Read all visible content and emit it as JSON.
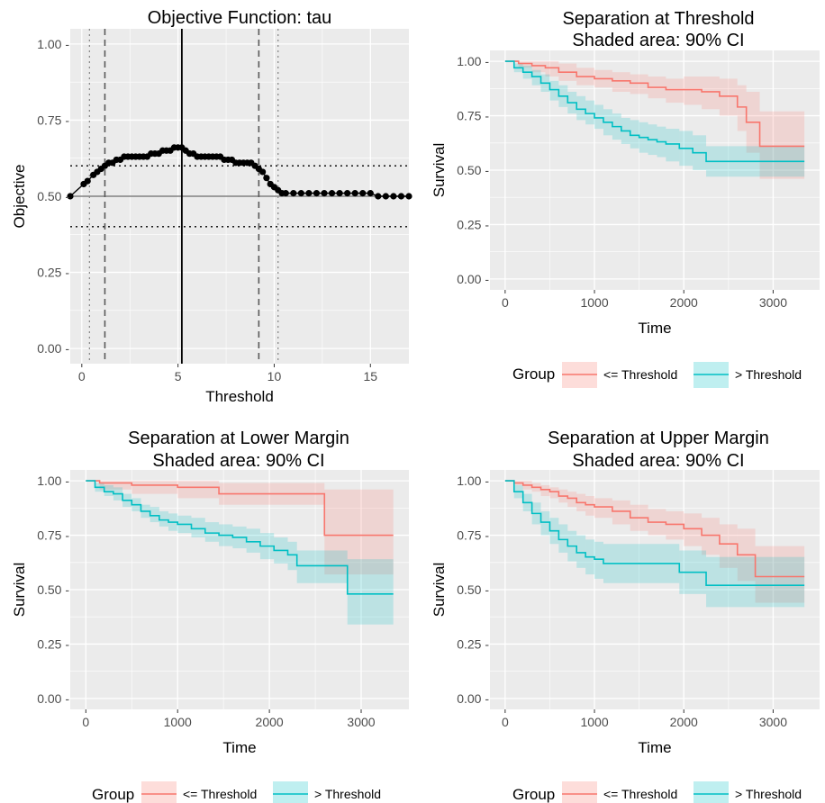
{
  "colors": {
    "panel_bg": "#ebebeb",
    "grid_major": "#ffffff",
    "low_group": "#f8766d",
    "high_group": "#00bfc4",
    "points": "#000000"
  },
  "chart_data": [
    {
      "id": "objective",
      "type": "scatter",
      "title": "Objective Function: tau",
      "xlabel": "Threshold",
      "ylabel": "Objective",
      "xlim": [
        -0.6,
        17
      ],
      "ylim": [
        -0.05,
        1.05
      ],
      "xticks": [
        0,
        5,
        10,
        15
      ],
      "xtick_labels": [
        "0",
        "5",
        "10",
        "15"
      ],
      "yticks": [
        0,
        0.25,
        0.5,
        0.75,
        1
      ],
      "ytick_labels": [
        "0.00 -",
        "0.25 -",
        "0.50 -",
        "0.75 -",
        "1.00 -"
      ],
      "grid": true,
      "series": [
        {
          "values_xy": [
            [
              -0.6,
              0.5
            ],
            [
              0.1,
              0.54
            ],
            [
              0.3,
              0.55
            ],
            [
              0.6,
              0.57
            ],
            [
              0.8,
              0.58
            ],
            [
              1.0,
              0.59
            ],
            [
              1.2,
              0.6
            ],
            [
              1.4,
              0.61
            ],
            [
              1.6,
              0.61
            ],
            [
              1.8,
              0.62
            ],
            [
              2.0,
              0.62
            ],
            [
              2.2,
              0.63
            ],
            [
              2.4,
              0.63
            ],
            [
              2.6,
              0.63
            ],
            [
              2.8,
              0.63
            ],
            [
              3.0,
              0.63
            ],
            [
              3.2,
              0.63
            ],
            [
              3.4,
              0.63
            ],
            [
              3.6,
              0.64
            ],
            [
              3.8,
              0.64
            ],
            [
              4.0,
              0.64
            ],
            [
              4.2,
              0.65
            ],
            [
              4.4,
              0.65
            ],
            [
              4.6,
              0.65
            ],
            [
              4.8,
              0.66
            ],
            [
              5.0,
              0.66
            ],
            [
              5.2,
              0.66
            ],
            [
              5.4,
              0.65
            ],
            [
              5.6,
              0.64
            ],
            [
              5.8,
              0.64
            ],
            [
              6.0,
              0.63
            ],
            [
              6.2,
              0.63
            ],
            [
              6.4,
              0.63
            ],
            [
              6.6,
              0.63
            ],
            [
              6.8,
              0.63
            ],
            [
              7.0,
              0.63
            ],
            [
              7.2,
              0.63
            ],
            [
              7.4,
              0.62
            ],
            [
              7.6,
              0.62
            ],
            [
              7.8,
              0.62
            ],
            [
              8.0,
              0.61
            ],
            [
              8.2,
              0.61
            ],
            [
              8.4,
              0.61
            ],
            [
              8.6,
              0.61
            ],
            [
              8.8,
              0.61
            ],
            [
              9.0,
              0.6
            ],
            [
              9.2,
              0.59
            ],
            [
              9.4,
              0.58
            ],
            [
              9.6,
              0.56
            ],
            [
              9.8,
              0.54
            ],
            [
              10.0,
              0.53
            ],
            [
              10.2,
              0.52
            ],
            [
              10.4,
              0.51
            ],
            [
              10.6,
              0.51
            ],
            [
              11.0,
              0.51
            ],
            [
              11.4,
              0.51
            ],
            [
              11.8,
              0.51
            ],
            [
              12.2,
              0.51
            ],
            [
              12.6,
              0.51
            ],
            [
              13.0,
              0.51
            ],
            [
              13.4,
              0.51
            ],
            [
              13.8,
              0.51
            ],
            [
              14.2,
              0.51
            ],
            [
              14.6,
              0.51
            ],
            [
              15.0,
              0.51
            ],
            [
              15.4,
              0.5
            ],
            [
              15.8,
              0.5
            ],
            [
              16.2,
              0.5
            ],
            [
              16.6,
              0.5
            ],
            [
              17.0,
              0.5
            ]
          ]
        }
      ],
      "reference_lines": {
        "h_solid": 0.5,
        "h_dotted": [
          0.4,
          0.6
        ],
        "v_solid": 5.2,
        "v_dashed": [
          1.2,
          9.2
        ],
        "v_dotted": [
          0.4,
          10.2
        ]
      }
    },
    {
      "id": "threshold",
      "type": "line",
      "title": "Separation at Threshold",
      "subtitle": "Shaded area: 90% CI",
      "xlabel": "Time",
      "ylabel": "Survival",
      "xlim": [
        -170,
        3520
      ],
      "ylim": [
        -0.05,
        1.05
      ],
      "xticks": [
        0,
        1000,
        2000,
        3000
      ],
      "xtick_labels": [
        "0",
        "1000",
        "2000",
        "3000"
      ],
      "yticks": [
        0,
        0.25,
        0.5,
        0.75,
        1
      ],
      "ytick_labels": [
        "0.00 -",
        "0.25 -",
        "0.50 -",
        "0.75 -",
        "1.00 -"
      ],
      "grid": true,
      "legend_position": "bottom",
      "series": [
        {
          "name": "<= Threshold",
          "x": [
            0,
            150,
            300,
            450,
            600,
            800,
            1000,
            1200,
            1400,
            1600,
            1800,
            2000,
            2200,
            2400,
            2600,
            2700,
            2850,
            3350
          ],
          "y": [
            1.0,
            0.99,
            0.98,
            0.97,
            0.95,
            0.93,
            0.92,
            0.91,
            0.9,
            0.88,
            0.87,
            0.87,
            0.86,
            0.84,
            0.79,
            0.72,
            0.61,
            0.61
          ],
          "lower": [
            1.0,
            0.97,
            0.95,
            0.93,
            0.91,
            0.89,
            0.88,
            0.86,
            0.85,
            0.83,
            0.81,
            0.8,
            0.78,
            0.75,
            0.68,
            0.58,
            0.46,
            0.46
          ],
          "upper": [
            1.0,
            1.0,
            1.0,
            1.0,
            0.99,
            0.97,
            0.96,
            0.95,
            0.94,
            0.93,
            0.92,
            0.93,
            0.93,
            0.92,
            0.89,
            0.86,
            0.77,
            0.77
          ]
        },
        {
          "name": "> Threshold",
          "x": [
            0,
            100,
            200,
            300,
            400,
            500,
            600,
            700,
            800,
            900,
            1000,
            1100,
            1200,
            1300,
            1400,
            1500,
            1600,
            1700,
            1800,
            1950,
            2100,
            2250,
            3350
          ],
          "y": [
            1.0,
            0.97,
            0.95,
            0.93,
            0.9,
            0.87,
            0.84,
            0.81,
            0.78,
            0.76,
            0.74,
            0.72,
            0.7,
            0.68,
            0.66,
            0.65,
            0.64,
            0.63,
            0.62,
            0.6,
            0.58,
            0.54,
            0.54
          ],
          "lower": [
            1.0,
            0.95,
            0.92,
            0.89,
            0.86,
            0.82,
            0.79,
            0.76,
            0.73,
            0.71,
            0.69,
            0.66,
            0.64,
            0.62,
            0.6,
            0.58,
            0.57,
            0.56,
            0.54,
            0.52,
            0.5,
            0.47,
            0.47
          ],
          "upper": [
            1.0,
            0.99,
            0.98,
            0.96,
            0.94,
            0.91,
            0.89,
            0.86,
            0.84,
            0.82,
            0.8,
            0.78,
            0.76,
            0.74,
            0.73,
            0.72,
            0.71,
            0.7,
            0.69,
            0.68,
            0.66,
            0.61,
            0.61
          ]
        }
      ]
    },
    {
      "id": "lower",
      "type": "line",
      "title": "Separation at Lower Margin",
      "subtitle": "Shaded area: 90% CI",
      "xlabel": "Time",
      "ylabel": "Survival",
      "xlim": [
        -170,
        3520
      ],
      "ylim": [
        -0.05,
        1.05
      ],
      "xticks": [
        0,
        1000,
        2000,
        3000
      ],
      "xtick_labels": [
        "0",
        "1000",
        "2000",
        "3000"
      ],
      "yticks": [
        0,
        0.25,
        0.5,
        0.75,
        1
      ],
      "ytick_labels": [
        "0.00 -",
        "0.25 -",
        "0.50 -",
        "0.75 -",
        "1.00 -"
      ],
      "grid": true,
      "legend_position": "bottom",
      "series": [
        {
          "name": "<= Threshold",
          "x": [
            0,
            150,
            500,
            1000,
            1450,
            2600,
            3350
          ],
          "y": [
            1.0,
            0.99,
            0.98,
            0.97,
            0.94,
            0.75,
            0.75
          ],
          "lower": [
            1.0,
            0.96,
            0.94,
            0.92,
            0.89,
            0.57,
            0.57
          ],
          "upper": [
            1.0,
            1.0,
            1.0,
            1.0,
            0.99,
            0.96,
            0.96
          ]
        },
        {
          "name": "> Threshold",
          "x": [
            0,
            100,
            200,
            300,
            400,
            500,
            600,
            700,
            800,
            900,
            1000,
            1150,
            1300,
            1450,
            1600,
            1750,
            1900,
            2050,
            2200,
            2300,
            2800,
            2850,
            3350
          ],
          "y": [
            1.0,
            0.97,
            0.95,
            0.94,
            0.91,
            0.89,
            0.86,
            0.84,
            0.82,
            0.81,
            0.8,
            0.78,
            0.76,
            0.75,
            0.74,
            0.72,
            0.7,
            0.68,
            0.66,
            0.61,
            0.61,
            0.48,
            0.48
          ],
          "lower": [
            1.0,
            0.95,
            0.93,
            0.91,
            0.88,
            0.86,
            0.83,
            0.81,
            0.79,
            0.77,
            0.76,
            0.74,
            0.72,
            0.7,
            0.69,
            0.67,
            0.64,
            0.62,
            0.59,
            0.53,
            0.53,
            0.34,
            0.34
          ],
          "upper": [
            1.0,
            0.99,
            0.98,
            0.97,
            0.94,
            0.92,
            0.89,
            0.88,
            0.86,
            0.85,
            0.84,
            0.83,
            0.81,
            0.8,
            0.79,
            0.78,
            0.76,
            0.74,
            0.72,
            0.68,
            0.68,
            0.64,
            0.64
          ]
        }
      ]
    },
    {
      "id": "upper",
      "type": "line",
      "title": "Separation at Upper Margin",
      "subtitle": "Shaded area: 90% CI",
      "xlabel": "Time",
      "ylabel": "Survival",
      "xlim": [
        -170,
        3520
      ],
      "ylim": [
        -0.05,
        1.05
      ],
      "xticks": [
        0,
        1000,
        2000,
        3000
      ],
      "xtick_labels": [
        "0",
        "1000",
        "2000",
        "3000"
      ],
      "yticks": [
        0,
        0.25,
        0.5,
        0.75,
        1
      ],
      "ytick_labels": [
        "0.00 -",
        "0.25 -",
        "0.50 -",
        "0.75 -",
        "1.00 -"
      ],
      "grid": true,
      "legend_position": "bottom",
      "series": [
        {
          "name": "<= Threshold",
          "x": [
            0,
            100,
            200,
            300,
            400,
            500,
            600,
            700,
            800,
            900,
            1000,
            1200,
            1400,
            1600,
            1800,
            2000,
            2200,
            2400,
            2600,
            2800,
            3350
          ],
          "y": [
            1.0,
            0.99,
            0.98,
            0.97,
            0.96,
            0.95,
            0.93,
            0.92,
            0.9,
            0.89,
            0.88,
            0.86,
            0.83,
            0.81,
            0.8,
            0.78,
            0.75,
            0.71,
            0.66,
            0.56,
            0.56
          ],
          "lower": [
            1.0,
            0.98,
            0.96,
            0.95,
            0.93,
            0.92,
            0.9,
            0.88,
            0.86,
            0.84,
            0.83,
            0.8,
            0.77,
            0.75,
            0.73,
            0.7,
            0.66,
            0.6,
            0.54,
            0.44,
            0.44
          ],
          "upper": [
            1.0,
            1.0,
            1.0,
            0.99,
            0.98,
            0.97,
            0.96,
            0.95,
            0.94,
            0.93,
            0.92,
            0.91,
            0.89,
            0.87,
            0.86,
            0.85,
            0.83,
            0.8,
            0.78,
            0.7,
            0.7
          ]
        },
        {
          "name": "> Threshold",
          "x": [
            0,
            100,
            200,
            300,
            400,
            500,
            600,
            700,
            800,
            900,
            1000,
            1100,
            1950,
            2250,
            3350
          ],
          "y": [
            1.0,
            0.95,
            0.9,
            0.85,
            0.81,
            0.77,
            0.73,
            0.7,
            0.67,
            0.65,
            0.64,
            0.62,
            0.58,
            0.52,
            0.52
          ],
          "lower": [
            1.0,
            0.92,
            0.86,
            0.8,
            0.75,
            0.71,
            0.67,
            0.63,
            0.6,
            0.57,
            0.55,
            0.53,
            0.48,
            0.42,
            0.42
          ],
          "upper": [
            1.0,
            0.98,
            0.94,
            0.9,
            0.86,
            0.83,
            0.8,
            0.77,
            0.75,
            0.73,
            0.72,
            0.71,
            0.68,
            0.65,
            0.65
          ]
        }
      ]
    }
  ],
  "legends": {
    "threshold": {
      "title": "Group",
      "items": [
        "<= Threshold",
        "> Threshold"
      ]
    },
    "lower": {
      "title": "Group",
      "items": [
        "<= Threshold",
        "> Threshold"
      ]
    },
    "upper": {
      "title": "Group",
      "items": [
        "<= Threshold",
        "> Threshold"
      ]
    }
  }
}
